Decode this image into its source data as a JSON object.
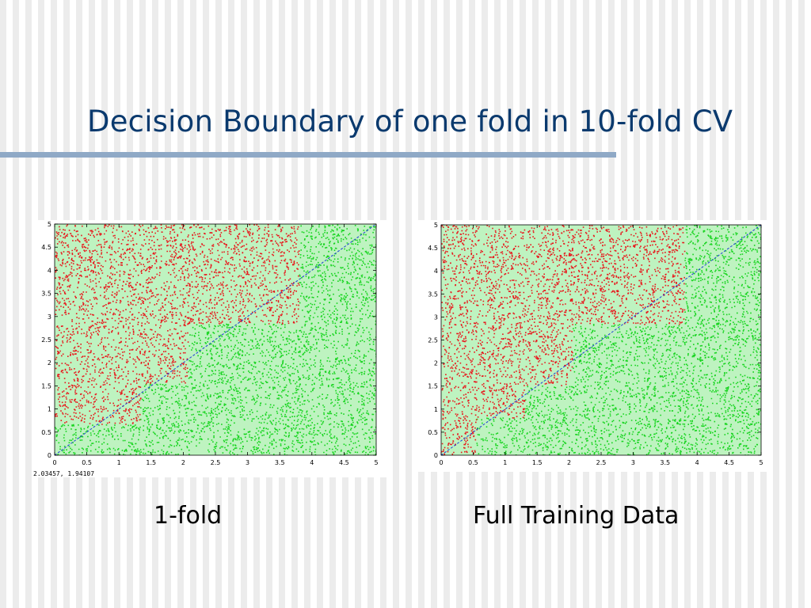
{
  "slide": {
    "title": "Decision Boundary of one fold in 10-fold CV",
    "captions": [
      "1-fold",
      "Full Training Data"
    ]
  },
  "chart_data": [
    {
      "type": "scatter",
      "title": "",
      "xlabel": "",
      "ylabel": "",
      "xlim": [
        0,
        5
      ],
      "ylim": [
        0,
        5
      ],
      "x_ticks": [
        "0",
        "0.5",
        "1",
        "1.5",
        "2",
        "2.5",
        "3",
        "3.5",
        "4",
        "4.5",
        "5"
      ],
      "y_ticks": [
        "0",
        "0.5",
        "1",
        "1.5",
        "2",
        "2.5",
        "3",
        "3.5",
        "4",
        "4.5",
        "5"
      ],
      "grid": false,
      "legend": "none",
      "coordinate_readout": "2.03457,  1.94107",
      "colors": {
        "class_red": "#e8161b",
        "class_green": "#16d41e",
        "diagonal": "#1f3fd6"
      },
      "diagonal_line": {
        "from": [
          0,
          0
        ],
        "to": [
          5,
          5
        ]
      },
      "red_region_steps": [
        {
          "x_start": 0,
          "x_end": 1.33,
          "y_from": 0.68
        },
        {
          "x_start": 1.33,
          "x_end": 2.07,
          "y_from": 1.55
        },
        {
          "x_start": 2.07,
          "x_end": 3.8,
          "y_from": 2.85
        },
        {
          "x_start": 3.8,
          "x_end": 5,
          "y_from": 5
        }
      ]
    },
    {
      "type": "scatter",
      "title": "",
      "xlabel": "",
      "ylabel": "",
      "xlim": [
        0,
        5
      ],
      "ylim": [
        0,
        5
      ],
      "x_ticks": [
        "0",
        "0.5",
        "1",
        "1.5",
        "2",
        "2.5",
        "3",
        "3.5",
        "4",
        "4.5",
        "5"
      ],
      "y_ticks": [
        "0",
        "0.5",
        "1",
        "1.5",
        "2",
        "2.5",
        "3",
        "3.5",
        "4",
        "4.5",
        "5"
      ],
      "grid": false,
      "legend": "none",
      "colors": {
        "class_red": "#e8161b",
        "class_green": "#16d41e",
        "diagonal": "#1f3fd6"
      },
      "diagonal_line": {
        "from": [
          0,
          0
        ],
        "to": [
          5,
          5
        ]
      },
      "red_region_steps": [
        {
          "x_start": 0,
          "x_end": 0.55,
          "y_from": 0
        },
        {
          "x_start": 0.55,
          "x_end": 1.3,
          "y_from": 0.82
        },
        {
          "x_start": 1.3,
          "x_end": 2.05,
          "y_from": 1.52
        },
        {
          "x_start": 2.05,
          "x_end": 3.8,
          "y_from": 2.85
        },
        {
          "x_start": 3.8,
          "x_end": 5,
          "y_from": 5
        }
      ]
    }
  ]
}
